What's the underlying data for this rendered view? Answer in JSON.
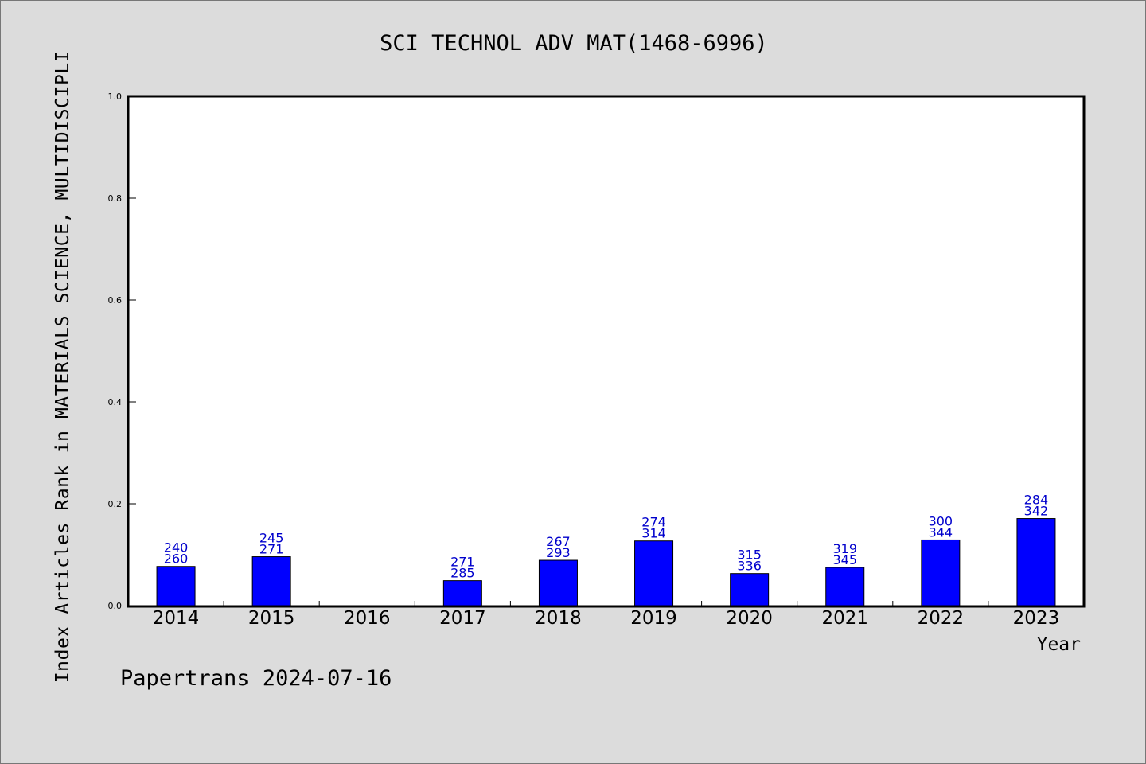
{
  "chart_data": {
    "type": "bar",
    "title": "SCI TECHNOL ADV MAT(1468-6996)",
    "xlabel": "Year",
    "ylabel": "Index Articles Rank in MATERIALS SCIENCE, MULTIDISCIPLI",
    "ylim": [
      0,
      1.0
    ],
    "yticks": [
      "0.0",
      "0.2",
      "0.4",
      "0.6",
      "0.8",
      "1.0"
    ],
    "categories": [
      "2014",
      "2015",
      "2016",
      "2017",
      "2018",
      "2019",
      "2020",
      "2021",
      "2022",
      "2023"
    ],
    "values": [
      0.077,
      0.096,
      null,
      0.049,
      0.089,
      0.127,
      0.063,
      0.075,
      0.129,
      0.171
    ],
    "ranks": [
      "240",
      "245",
      "",
      "271",
      "267",
      "274",
      "315",
      "319",
      "300",
      "284"
    ],
    "totals": [
      "260",
      "271",
      "",
      "285",
      "293",
      "314",
      "336",
      "345",
      "344",
      "342"
    ],
    "bar_color": "#0000ff",
    "label_color": "#0000cc",
    "grid": false,
    "legend": "none"
  },
  "footer": "Papertrans 2024-07-16"
}
